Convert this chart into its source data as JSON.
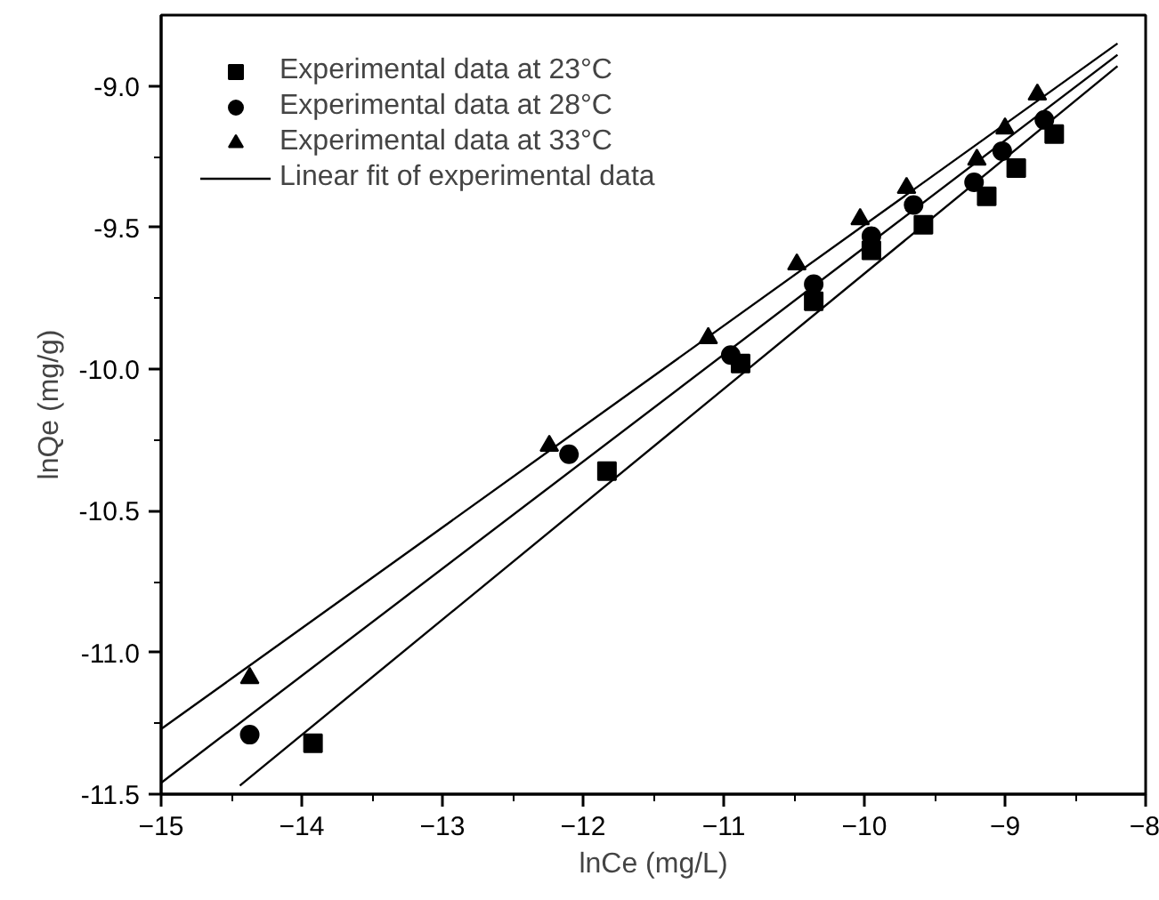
{
  "chart_data": {
    "type": "scatter",
    "xlabel": "lnCe (mg/L)",
    "ylabel": "lnQe (mg/g)",
    "xlim": [
      -15,
      -8
    ],
    "ylim": [
      -11.5,
      -8.75
    ],
    "xticks": [
      -15,
      -14,
      -13,
      -12,
      -11,
      -10,
      -9,
      -8
    ],
    "yticks": [
      {
        "value": -11.5,
        "label": "-11.5"
      },
      {
        "value": -11.0,
        "label": "-11.0"
      },
      {
        "value": -10.5,
        "label": "-10.5"
      },
      {
        "value": -10.0,
        "label": "-10.0"
      },
      {
        "value": -9.5,
        "label": "-9.5"
      },
      {
        "value": -9.0,
        "label": "-9.0"
      }
    ],
    "grid": false,
    "legend": "top left",
    "series": [
      {
        "name": "Experimental data at 23°C",
        "color": "#000000",
        "marker": "square",
        "x": [
          -13.92,
          -11.83,
          -10.88,
          -10.36,
          -9.95,
          -9.58,
          -9.13,
          -8.92,
          -8.65
        ],
        "values": [
          -11.32,
          -10.36,
          -9.98,
          -9.76,
          -9.58,
          -9.49,
          -9.39,
          -9.29,
          -9.17
        ]
      },
      {
        "name": "Experimental data at 28°C",
        "color": "#000000",
        "marker": "circle",
        "x": [
          -14.37,
          -12.1,
          -10.95,
          -10.36,
          -9.95,
          -9.65,
          -9.22,
          -9.02,
          -8.72
        ],
        "values": [
          -11.29,
          -10.3,
          -9.95,
          -9.7,
          -9.53,
          -9.42,
          -9.34,
          -9.23,
          -9.12
        ]
      },
      {
        "name": "Experimental data at 33°C",
        "color": "#000000",
        "marker": "triangle",
        "x": [
          -14.37,
          -12.24,
          -11.11,
          -10.48,
          -10.03,
          -9.7,
          -9.2,
          -9.0,
          -8.77
        ],
        "values": [
          -11.09,
          -10.27,
          -9.89,
          -9.63,
          -9.47,
          -9.36,
          -9.26,
          -9.15,
          -9.03
        ]
      },
      {
        "name": "Linear fit of experimental data",
        "type": "line",
        "color": "#000000",
        "x": [
          -14.44,
          -8.2
        ],
        "values": [
          -11.47,
          -8.93
        ]
      },
      {
        "type": "line",
        "color": "#000000",
        "x": [
          -15,
          -8.2
        ],
        "values": [
          -11.46,
          -8.89
        ]
      },
      {
        "type": "line",
        "color": "#000000",
        "x": [
          -15,
          -8.2
        ],
        "values": [
          -11.27,
          -8.85
        ]
      }
    ]
  }
}
